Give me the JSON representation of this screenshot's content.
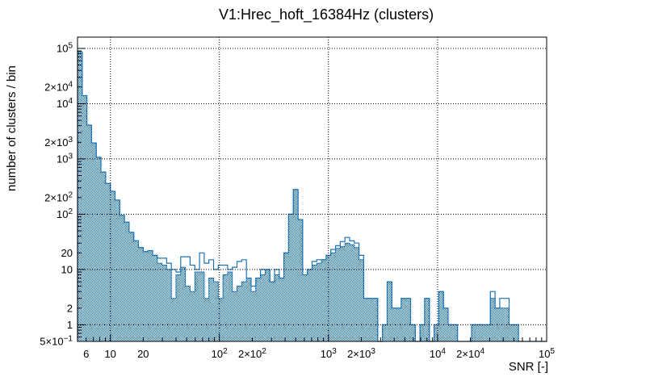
{
  "chart_data": {
    "type": "bar",
    "subtype": "log-log step histogram (ROOT style)",
    "title": "V1:Hrec_hoft_16384Hz (clusters)",
    "xlabel": "SNR [-]",
    "ylabel": "number of clusters / bin",
    "xscale": "log",
    "yscale": "log",
    "xlim": [
      5,
      100000
    ],
    "ylim": [
      0.5,
      160000
    ],
    "grid": "dotted-black-on-decades",
    "legend": "none",
    "colors": {
      "histogram": "#1c74b4",
      "frame": "#000000",
      "grid": "#000000",
      "background": "#ffffff"
    },
    "x_ticks": [
      {
        "v": 6,
        "m": "6",
        "e": ""
      },
      {
        "v": 10,
        "m": "10",
        "e": ""
      },
      {
        "v": 20,
        "m": "20",
        "e": ""
      },
      {
        "v": 100,
        "m": "10",
        "e": "2"
      },
      {
        "v": 200,
        "m": "2×10",
        "e": "2"
      },
      {
        "v": 1000,
        "m": "10",
        "e": "3"
      },
      {
        "v": 2000,
        "m": "2×10",
        "e": "3"
      },
      {
        "v": 10000,
        "m": "10",
        "e": "4"
      },
      {
        "v": 20000,
        "m": "2×10",
        "e": "4"
      },
      {
        "v": 100000,
        "m": "10",
        "e": "5"
      }
    ],
    "y_ticks": [
      {
        "v": 100000,
        "m": "10",
        "e": "5"
      },
      {
        "v": 20000,
        "m": "2×10",
        "e": "4"
      },
      {
        "v": 10000,
        "m": "10",
        "e": "4"
      },
      {
        "v": 2000,
        "m": "2×10",
        "e": "3"
      },
      {
        "v": 1000,
        "m": "10",
        "e": "3"
      },
      {
        "v": 200,
        "m": "2×10",
        "e": "2"
      },
      {
        "v": 100,
        "m": "10",
        "e": "2"
      },
      {
        "v": 20,
        "m": "20",
        "e": ""
      },
      {
        "v": 10,
        "m": "10",
        "e": ""
      },
      {
        "v": 2,
        "m": "2",
        "e": ""
      },
      {
        "v": 1,
        "m": "1",
        "e": ""
      },
      {
        "v": 0.5,
        "m": "5×10",
        "e": "−1"
      }
    ],
    "grid_x_values": [
      10,
      100,
      1000,
      10000
    ],
    "grid_y_values": [
      1,
      10,
      100,
      1000,
      10000,
      100000
    ],
    "bins": {
      "min": 5,
      "max": 100000,
      "count": 100
    },
    "series": [
      {
        "name": "clusters-filled",
        "style": "hatched-fill",
        "values": [
          87000,
          14000,
          4100,
          1950,
          1070,
          580,
          360,
          260,
          180,
          95,
          72,
          47,
          33,
          25,
          21,
          22,
          18,
          13,
          12,
          10,
          3,
          8,
          11,
          5,
          4,
          9,
          9,
          3,
          7,
          6,
          3,
          8,
          9,
          4,
          5,
          6,
          7,
          4,
          7,
          8,
          10,
          6,
          8,
          7,
          20,
          100,
          280,
          80,
          8,
          10,
          12,
          13,
          15,
          18,
          20,
          24,
          26,
          30,
          28,
          25,
          15,
          3,
          3,
          3,
          0,
          1,
          6,
          2,
          2,
          3,
          3,
          1,
          0,
          1,
          3,
          0,
          1,
          4,
          2,
          1,
          1,
          0,
          0,
          0,
          1,
          1,
          1,
          1,
          3,
          2,
          2,
          2,
          1,
          1,
          0,
          0,
          0,
          0,
          0,
          0
        ]
      },
      {
        "name": "clusters-outline",
        "style": "hollow-line",
        "values": [
          87000,
          14000,
          4100,
          1950,
          1070,
          580,
          360,
          260,
          180,
          95,
          72,
          47,
          33,
          25,
          21,
          22,
          18,
          16,
          16,
          13,
          10,
          9,
          17,
          17,
          12,
          10,
          20,
          13,
          15,
          10,
          12,
          12,
          10,
          11,
          14,
          15,
          7,
          5,
          7,
          10,
          10,
          6,
          10,
          7,
          20,
          100,
          280,
          80,
          8,
          10,
          14,
          15,
          15,
          18,
          23,
          27,
          32,
          38,
          33,
          30,
          18,
          3,
          3,
          3,
          0,
          1,
          6,
          2,
          2,
          3,
          3,
          1,
          0,
          1,
          3,
          0,
          1,
          4,
          2,
          1,
          1,
          0,
          0,
          0,
          1,
          1,
          1,
          1,
          4,
          2,
          3,
          3,
          1,
          1,
          0,
          0,
          0,
          0,
          0,
          0
        ]
      }
    ]
  }
}
